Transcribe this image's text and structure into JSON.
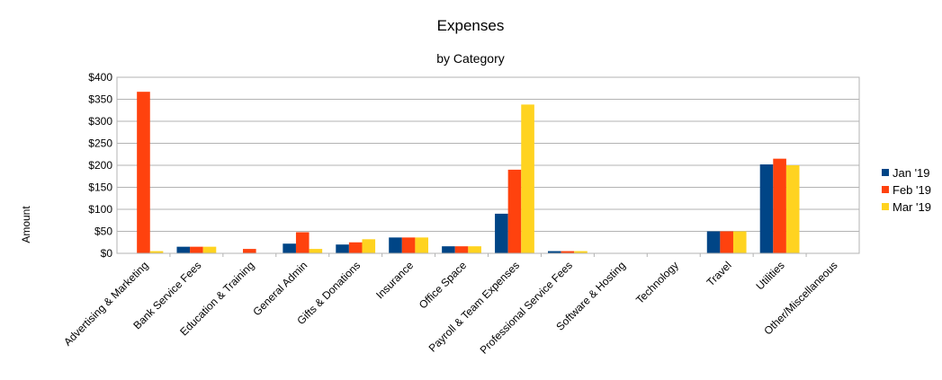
{
  "chart_data": {
    "type": "bar",
    "title": "Expenses",
    "subtitle": "by Category",
    "ylabel": "Amount",
    "xlabel": "",
    "ylim": [
      0,
      400
    ],
    "y_ticks": [
      "$0",
      "$50",
      "$100",
      "$150",
      "$200",
      "$250",
      "$300",
      "$350",
      "$400"
    ],
    "y_tick_values": [
      0,
      50,
      100,
      150,
      200,
      250,
      300,
      350,
      400
    ],
    "grid": true,
    "legend_position": "right",
    "categories": [
      "Advertising & Marketing",
      "Bank Service Fees",
      "Education & Training",
      "General Admin",
      "Gifts & Donations",
      "Insurance",
      "Office Space",
      "Payroll & Team Expenses",
      "Professional Service Fees",
      "Software & Hosting",
      "Technology",
      "Travel",
      "Utilities",
      "Other/Miscellaneous"
    ],
    "series": [
      {
        "name": "Jan '19",
        "color": "#004586",
        "values": [
          0,
          15,
          0,
          22,
          20,
          36,
          16,
          90,
          5,
          0,
          0,
          50,
          202,
          0
        ]
      },
      {
        "name": "Feb '19",
        "color": "#ff420e",
        "values": [
          367,
          15,
          10,
          48,
          25,
          36,
          16,
          190,
          5,
          0,
          0,
          50,
          215,
          0
        ]
      },
      {
        "name": "Mar '19",
        "color": "#ffd320",
        "values": [
          5,
          15,
          0,
          10,
          32,
          36,
          16,
          338,
          5,
          0,
          0,
          50,
          200,
          0
        ]
      }
    ]
  }
}
